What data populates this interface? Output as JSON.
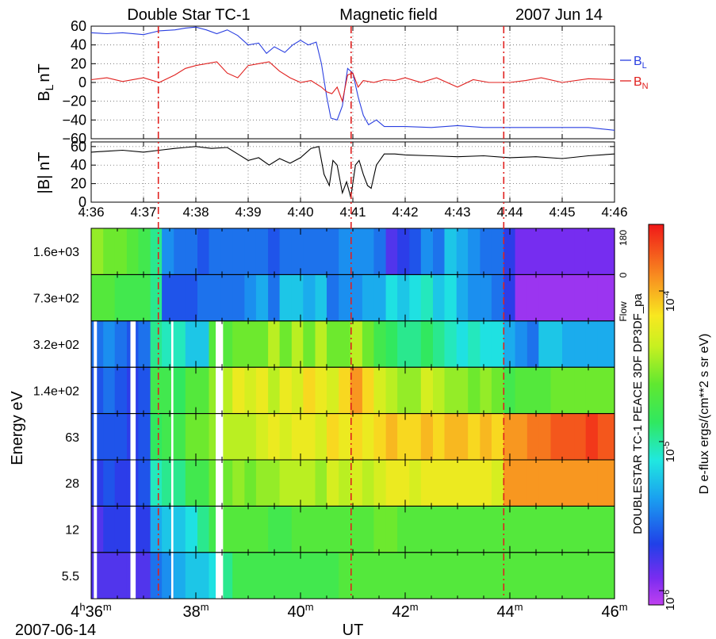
{
  "header": {
    "left": "Double Star  TC-1",
    "center": "Magnetic  field",
    "right": "2007  Jun  14"
  },
  "panel_bl": {
    "ylabel_main": "B",
    "ylabel_sub": "L",
    "ylabel_unit": "nT",
    "ylim": [
      -60,
      60
    ],
    "yticks": [
      "60",
      "40",
      "20",
      "0",
      "−20",
      "−40",
      "−60"
    ],
    "legend": [
      {
        "main": "B",
        "sub": "L",
        "color": "#2a3fe0"
      },
      {
        "main": "B",
        "sub": "N",
        "color": "#e0201e"
      }
    ]
  },
  "panel_bmag": {
    "ylabel": "|B| nT",
    "ylim": [
      0,
      65
    ],
    "yticks": [
      "60",
      "40",
      "20",
      "0"
    ],
    "xticks": [
      "4:36",
      "4:37",
      "4:38",
      "4:39",
      "4:40",
      "4:41",
      "4:42",
      "4:43",
      "4:44",
      "4:45",
      "4:46"
    ]
  },
  "spectrogram": {
    "ylabel": "Energy  eV",
    "channel_labels": [
      "1.6e+03",
      "7.3e+02",
      "3.2e+02",
      "1.4e+02",
      "63",
      "28",
      "12",
      "5.5"
    ],
    "pa_labels": [
      "180",
      "0"
    ],
    "flow_label": "Flow",
    "right_label": "DOUBLESTAR TC-1 PEACE 3DF DP3DF_pa",
    "xaxis": {
      "first_tick": {
        "h": "4",
        "hsup": "h",
        "m": "36",
        "msup": "m"
      },
      "ticks": [
        {
          "m": "38",
          "sup": "m"
        },
        {
          "m": "40",
          "sup": "m"
        },
        {
          "m": "42",
          "sup": "m"
        },
        {
          "m": "44",
          "sup": "m"
        },
        {
          "m": "46",
          "sup": "m"
        }
      ],
      "date": "2007-06-14",
      "label": "UT"
    }
  },
  "colorbar": {
    "label": "D e-flux ergs/(cm**2 s sr eV)",
    "ticks": [
      {
        "base": "10",
        "exp": "-4"
      },
      {
        "base": "10",
        "exp": "-5"
      },
      {
        "base": "10",
        "exp": "-6"
      }
    ]
  },
  "vlines_time": [
    "4:37:17",
    "4:40:58",
    "4:43:53"
  ],
  "chart_data": {
    "type": "line",
    "x_unit": "UT (minutes after 04:00, 2007-06-14)",
    "xlim": [
      36,
      46
    ],
    "series": [
      {
        "name": "B_L",
        "color": "#2a3fe0",
        "x": [
          36.0,
          36.3,
          36.6,
          37.0,
          37.3,
          37.6,
          37.8,
          38.0,
          38.2,
          38.4,
          38.6,
          38.8,
          39.0,
          39.2,
          39.35,
          39.5,
          39.7,
          39.85,
          40.0,
          40.15,
          40.3,
          40.4,
          40.5,
          40.58,
          40.7,
          40.8,
          40.9,
          41.0,
          41.1,
          41.2,
          41.3,
          41.45,
          41.6,
          41.8,
          42.0,
          42.5,
          43.0,
          43.5,
          44.0,
          44.5,
          45.0,
          45.5,
          46.0
        ],
        "y": [
          53,
          52,
          53,
          51,
          55,
          56,
          58,
          59,
          56,
          52,
          56,
          50,
          40,
          42,
          31,
          38,
          32,
          40,
          45,
          40,
          43,
          20,
          -15,
          -38,
          -40,
          -25,
          15,
          10,
          -15,
          -35,
          -45,
          -40,
          -47,
          -47,
          -47,
          -48,
          -46,
          -48,
          -48,
          -48,
          -48,
          -48,
          -51
        ]
      },
      {
        "name": "B_N",
        "color": "#e0201e",
        "x": [
          36.0,
          36.3,
          36.6,
          37.0,
          37.3,
          37.6,
          37.8,
          38.0,
          38.2,
          38.4,
          38.6,
          38.8,
          39.0,
          39.2,
          39.4,
          39.6,
          39.8,
          40.0,
          40.2,
          40.4,
          40.5,
          40.6,
          40.7,
          40.8,
          40.9,
          41.0,
          41.1,
          41.2,
          41.4,
          41.6,
          41.8,
          42.0,
          42.3,
          42.6,
          43.0,
          43.3,
          43.6,
          44.0,
          44.3,
          44.6,
          45.0,
          45.5,
          46.0
        ],
        "y": [
          3,
          5,
          1,
          5,
          0,
          8,
          15,
          18,
          20,
          22,
          10,
          5,
          18,
          20,
          22,
          12,
          5,
          0,
          2,
          -5,
          -10,
          -12,
          -5,
          -20,
          8,
          10,
          -5,
          2,
          0,
          3,
          2,
          5,
          0,
          5,
          -5,
          3,
          0,
          0,
          2,
          5,
          0,
          4,
          3
        ]
      },
      {
        "name": "|B|",
        "x": [
          36.0,
          36.3,
          36.6,
          37.0,
          37.3,
          37.6,
          37.8,
          38.0,
          38.3,
          38.6,
          38.8,
          39.0,
          39.2,
          39.4,
          39.6,
          39.8,
          40.0,
          40.2,
          40.35,
          40.45,
          40.55,
          40.62,
          40.7,
          40.8,
          40.88,
          40.96,
          41.05,
          41.12,
          41.2,
          41.28,
          41.35,
          41.45,
          41.6,
          41.8,
          42.0,
          42.5,
          43.0,
          43.5,
          44.0,
          44.5,
          45.0,
          45.5,
          46.0
        ],
        "y": [
          54,
          55,
          56,
          54,
          56,
          58,
          59,
          60,
          58,
          59,
          52,
          45,
          48,
          40,
          47,
          42,
          48,
          58,
          60,
          30,
          18,
          45,
          40,
          10,
          22,
          5,
          40,
          45,
          30,
          18,
          15,
          40,
          52,
          52,
          51,
          50,
          49,
          50,
          48,
          49,
          47,
          50,
          52
        ]
      }
    ],
    "spectrogram_grid": {
      "time_bins_min": [
        36.0,
        36.23,
        36.45,
        36.68,
        36.9,
        37.13,
        37.35,
        37.58,
        37.8,
        38.03,
        38.25,
        38.48,
        38.7,
        38.93,
        39.15,
        39.38,
        39.6,
        39.83,
        40.05,
        40.28,
        40.5,
        40.73,
        40.95,
        41.18,
        41.4,
        41.63,
        41.85,
        42.08,
        42.3,
        42.53,
        42.75,
        42.98,
        43.2,
        43.43,
        43.65,
        43.88,
        44.1,
        44.33,
        44.55,
        44.78,
        45.0,
        45.23,
        45.45,
        45.68
      ],
      "channels": [
        "1.6e+03",
        "7.3e+02",
        "3.2e+02",
        "1.4e+02",
        "63",
        "28",
        "12",
        "5.5"
      ],
      "log_flux_range": [
        -6.2,
        -3.5
      ],
      "approx_log_flux": [
        [
          -4.5,
          -4.6,
          -4.6,
          -4.7,
          -4.8,
          -5.0,
          -5.5,
          -5.6,
          -5.6,
          -5.7,
          -5.6,
          -5.6,
          -5.6,
          -5.6,
          -5.6,
          -5.7,
          -5.6,
          -5.6,
          -5.6,
          -5.6,
          -5.6,
          -5.5,
          -5.5,
          -5.5,
          -5.6,
          -5.9,
          -5.8,
          -5.7,
          -5.5,
          -5.6,
          -5.3,
          -5.4,
          -5.5,
          -5.6,
          -5.6,
          -5.8,
          -6.0,
          -6.0,
          -6.0,
          -6.0,
          -6.0,
          -6.0,
          -6.0,
          -6.0
        ],
        [
          -4.7,
          -4.7,
          -4.8,
          -4.8,
          -4.8,
          -5.0,
          -5.7,
          -5.7,
          -5.7,
          -5.6,
          -5.6,
          -5.6,
          -5.6,
          -5.5,
          -5.4,
          -5.6,
          -5.3,
          -5.3,
          -5.4,
          -5.3,
          -5.6,
          -5.5,
          -5.5,
          -5.4,
          -5.4,
          -5.2,
          -5.3,
          -5.2,
          -5.1,
          -5.3,
          -5.2,
          -5.4,
          -5.5,
          -5.5,
          -5.6,
          -5.8,
          -6.1,
          -6.1,
          -6.1,
          -6.1,
          -6.1,
          -6.1,
          -6.1,
          -6.1
        ],
        [
          -5.6,
          -5.5,
          -5.6,
          -5.7,
          -5.6,
          -5.0,
          -5.1,
          -5.1,
          -5.3,
          -5.3,
          -4.7,
          -4.7,
          -4.6,
          -4.6,
          -4.6,
          -4.4,
          -4.6,
          -4.4,
          -4.6,
          -4.4,
          -4.6,
          -4.6,
          -4.4,
          -4.6,
          -4.8,
          -4.9,
          -5.0,
          -5.0,
          -4.9,
          -5.0,
          -5.1,
          -5.2,
          -5.1,
          -5.2,
          -5.2,
          -5.4,
          -5.5,
          -5.6,
          -5.3,
          -5.3,
          -5.4,
          -5.4,
          -5.4,
          -5.4
        ],
        [
          -5.7,
          -5.6,
          -5.7,
          -5.8,
          -5.7,
          -4.8,
          -4.8,
          -4.9,
          -4.7,
          -4.7,
          -4.5,
          -4.4,
          -4.2,
          -4.3,
          -4.2,
          -4.4,
          -4.2,
          -4.3,
          -4.1,
          -4.2,
          -4.3,
          -4.1,
          -3.9,
          -4.1,
          -4.3,
          -4.4,
          -4.5,
          -4.5,
          -4.3,
          -4.4,
          -4.5,
          -4.5,
          -4.6,
          -4.5,
          -4.6,
          -4.8,
          -4.7,
          -4.7,
          -4.7,
          -4.6,
          -4.6,
          -4.6,
          -4.6,
          -4.6
        ],
        [
          -5.7,
          -5.7,
          -5.7,
          -5.8,
          -5.7,
          -4.9,
          -4.8,
          -4.8,
          -4.6,
          -4.6,
          -4.5,
          -4.4,
          -4.4,
          -4.4,
          -4.3,
          -4.2,
          -4.3,
          -4.2,
          -4.2,
          -4.3,
          -4.1,
          -4.2,
          -4.1,
          -4.2,
          -4.1,
          -4.0,
          -4.1,
          -4.1,
          -4.0,
          -4.1,
          -4.0,
          -4.0,
          -4.1,
          -4.0,
          -4.1,
          -3.9,
          -3.9,
          -3.8,
          -3.8,
          -3.7,
          -3.7,
          -3.7,
          -3.6,
          -3.7
        ],
        [
          -5.8,
          -5.7,
          -5.8,
          -5.8,
          -5.7,
          -5.1,
          -5.0,
          -5.0,
          -4.8,
          -4.8,
          -4.6,
          -4.6,
          -4.5,
          -4.6,
          -4.5,
          -4.5,
          -4.4,
          -4.4,
          -4.4,
          -4.5,
          -4.3,
          -4.4,
          -4.3,
          -4.4,
          -4.3,
          -4.2,
          -4.2,
          -4.3,
          -4.2,
          -4.2,
          -4.2,
          -4.2,
          -4.2,
          -4.2,
          -4.3,
          -3.9,
          -3.9,
          -3.9,
          -3.9,
          -3.9,
          -3.9,
          -3.9,
          -3.9,
          -3.9
        ],
        [
          -5.9,
          -5.8,
          -5.8,
          -5.8,
          -5.8,
          -5.4,
          -5.3,
          -5.3,
          -5.2,
          -5.0,
          -4.8,
          -4.7,
          -4.7,
          -4.7,
          -4.7,
          -4.8,
          -4.8,
          -4.7,
          -4.7,
          -4.7,
          -4.7,
          -4.7,
          -4.7,
          -4.7,
          -4.6,
          -4.6,
          -4.7,
          -4.7,
          -4.7,
          -4.7,
          -4.7,
          -4.7,
          -4.7,
          -4.7,
          -4.7,
          -4.7,
          -4.7,
          -4.7,
          -4.7,
          -4.7,
          -4.7,
          -4.7,
          -4.7,
          -4.7
        ],
        [
          -5.9,
          -5.9,
          -5.9,
          -5.9,
          -5.9,
          -5.6,
          -5.5,
          -5.4,
          -5.3,
          -5.3,
          -5.2,
          -5.0,
          -4.8,
          -4.8,
          -4.8,
          -4.8,
          -4.8,
          -4.8,
          -4.8,
          -4.8,
          -4.8,
          -4.7,
          -4.7,
          -4.7,
          -4.7,
          -4.7,
          -4.7,
          -4.7,
          -4.7,
          -4.7,
          -4.7,
          -4.7,
          -4.7,
          -4.7,
          -4.7,
          -4.7,
          -4.7,
          -4.7,
          -4.7,
          -4.7,
          -4.7,
          -4.7,
          -4.7,
          -4.7
        ]
      ],
      "data_gaps_min": [
        [
          36.05,
          36.11
        ],
        [
          36.75,
          36.85
        ],
        [
          37.53,
          37.57
        ],
        [
          38.38,
          38.52
        ]
      ]
    }
  }
}
